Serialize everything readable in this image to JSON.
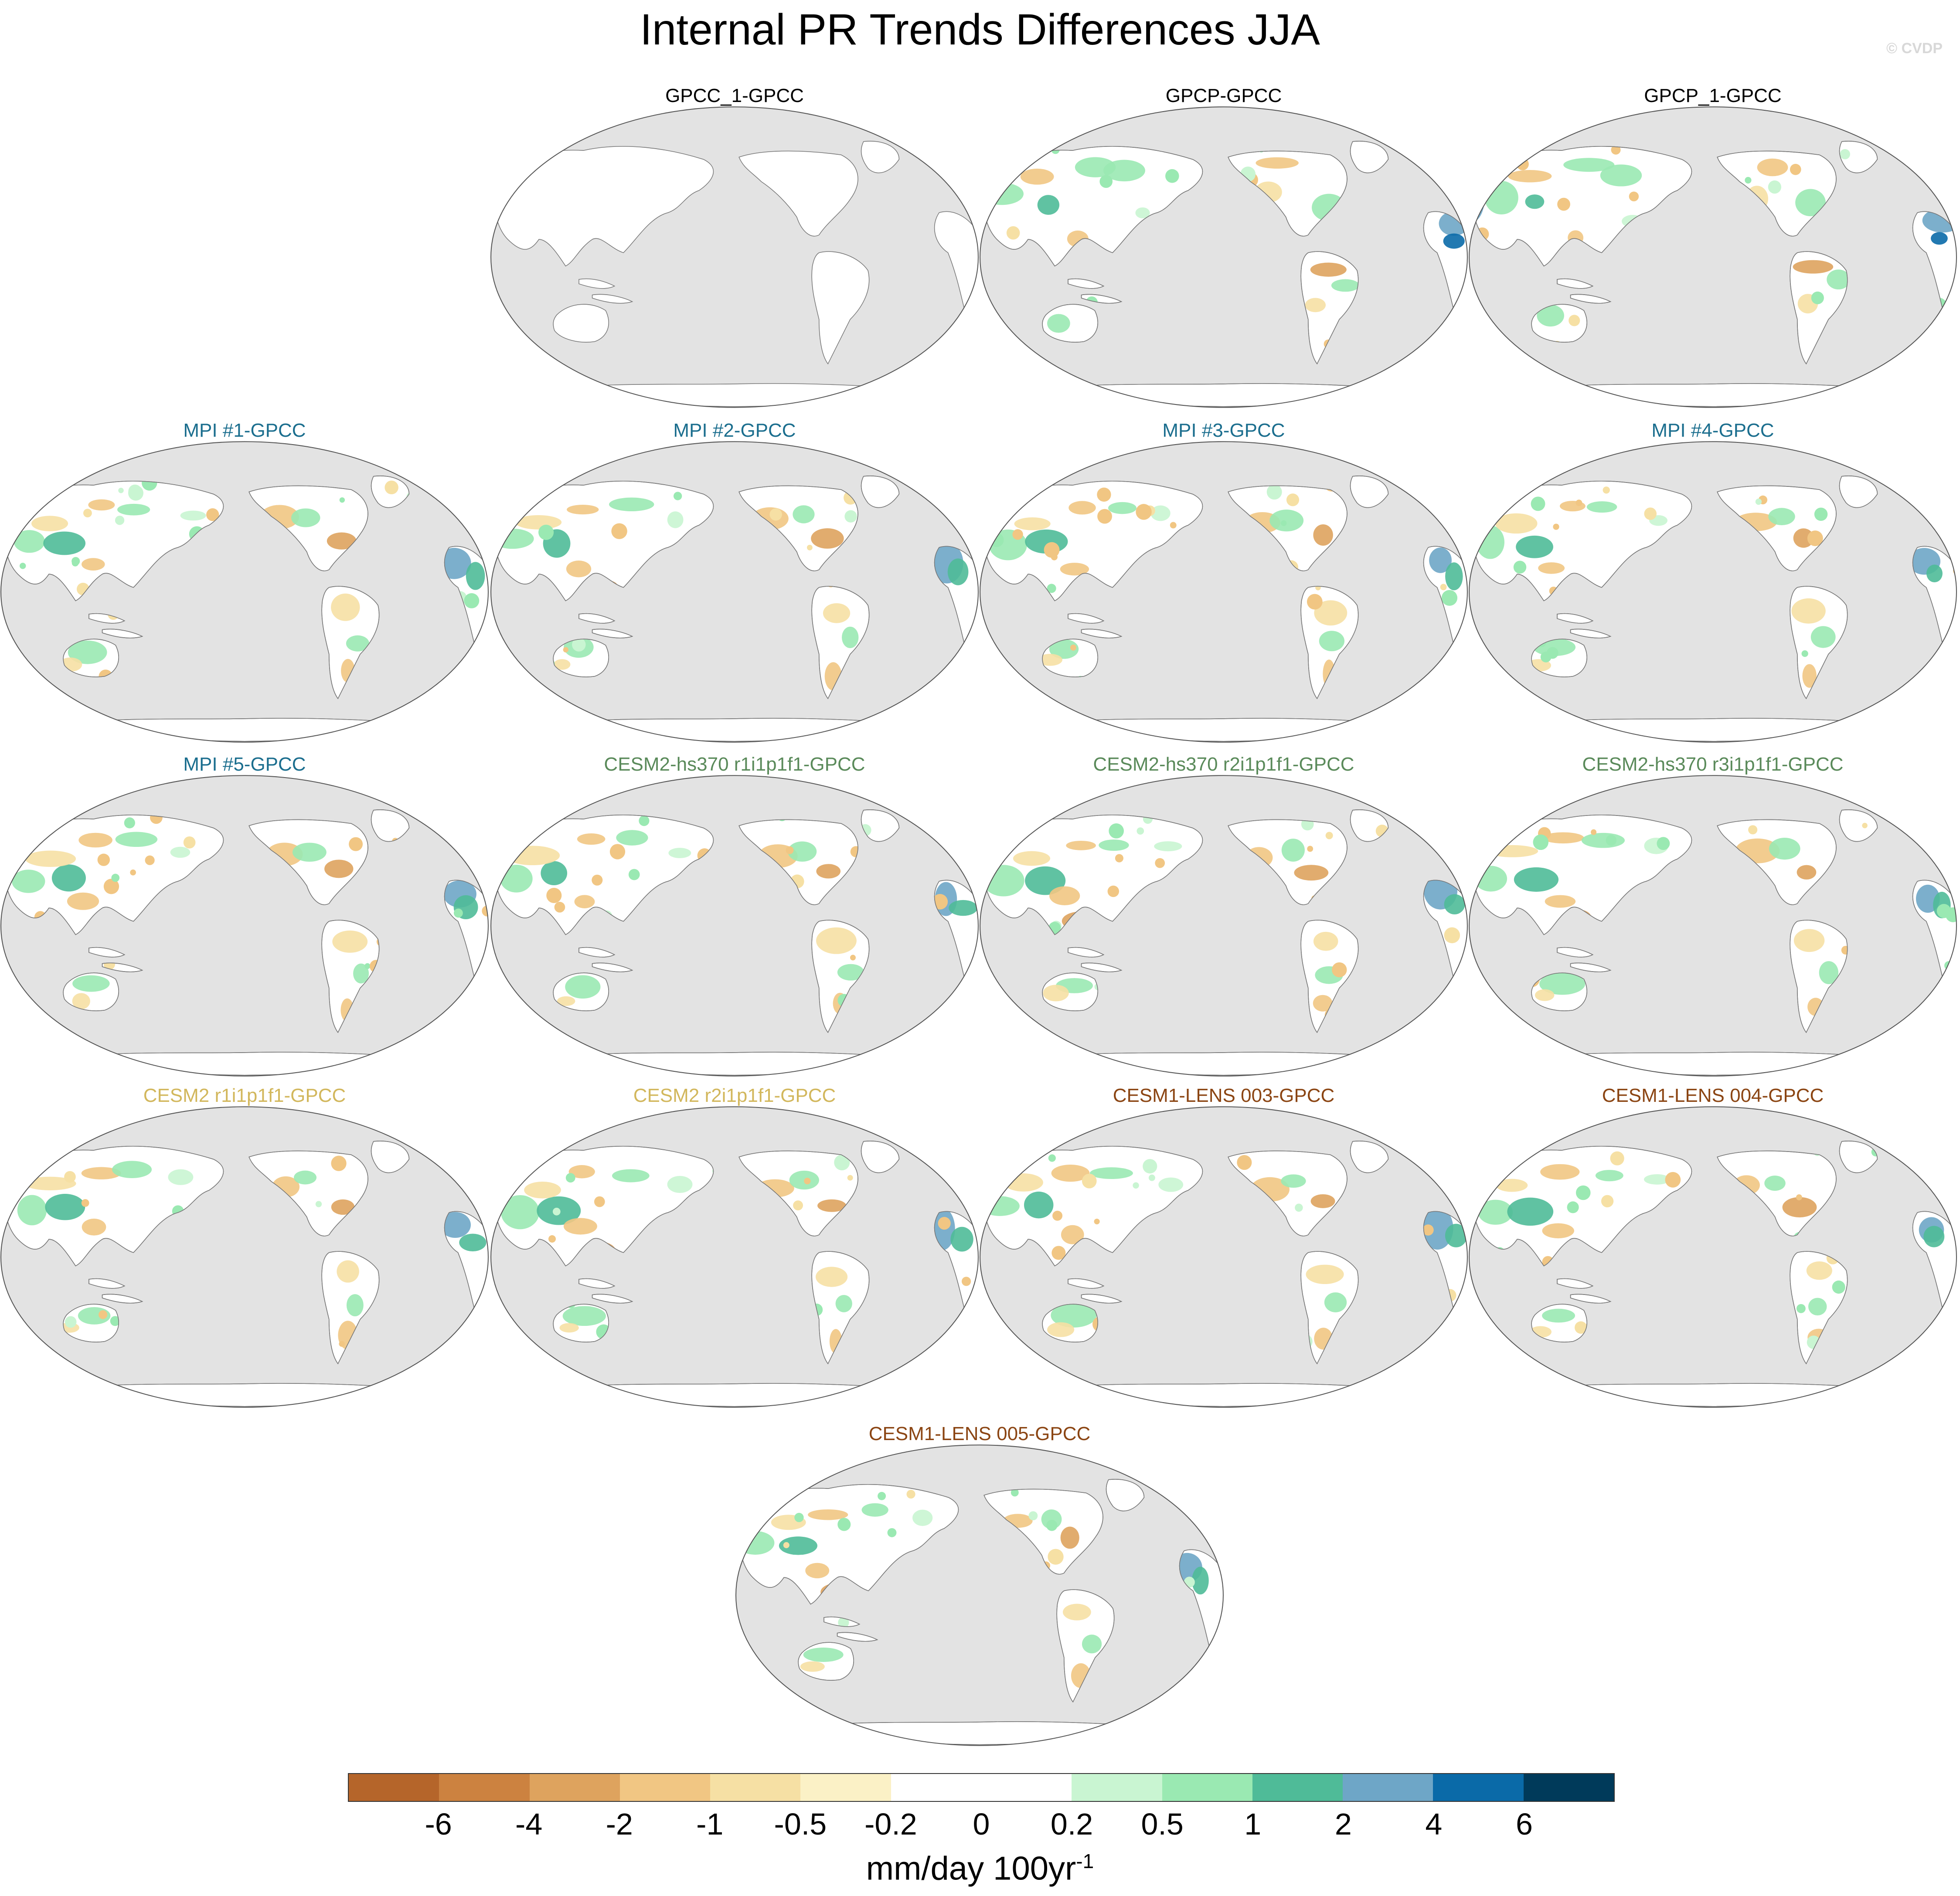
{
  "title": "Internal PR Trends Differences JJA",
  "copyright": "© CVDP",
  "colors": {
    "ocean": "#e3e3e3",
    "land": "#ffffff",
    "coastline": "#777777"
  },
  "panels": [
    {
      "label": "GPCC_1-GPCC",
      "color": "#000000",
      "pattern": "none"
    },
    {
      "label": "GPCP-GPCC",
      "color": "#000000",
      "pattern": "obs"
    },
    {
      "label": "GPCP_1-GPCC",
      "color": "#000000",
      "pattern": "obs"
    },
    {
      "label": "MPI #1-GPCC",
      "color": "#1b6e8e",
      "pattern": "model"
    },
    {
      "label": "MPI #2-GPCC",
      "color": "#1b6e8e",
      "pattern": "model"
    },
    {
      "label": "MPI #3-GPCC",
      "color": "#1b6e8e",
      "pattern": "model"
    },
    {
      "label": "MPI #4-GPCC",
      "color": "#1b6e8e",
      "pattern": "model"
    },
    {
      "label": "MPI #5-GPCC",
      "color": "#1b6e8e",
      "pattern": "model"
    },
    {
      "label": "CESM2-hs370 r1i1p1f1-GPCC",
      "color": "#5a8a5a",
      "pattern": "model"
    },
    {
      "label": "CESM2-hs370 r2i1p1f1-GPCC",
      "color": "#5a8a5a",
      "pattern": "model"
    },
    {
      "label": "CESM2-hs370 r3i1p1f1-GPCC",
      "color": "#5a8a5a",
      "pattern": "model"
    },
    {
      "label": "CESM2 r1i1p1f1-GPCC",
      "color": "#d2b75c",
      "pattern": "model"
    },
    {
      "label": "CESM2 r2i1p1f1-GPCC",
      "color": "#d2b75c",
      "pattern": "model"
    },
    {
      "label": "CESM1-LENS 003-GPCC",
      "color": "#8b4513",
      "pattern": "model"
    },
    {
      "label": "CESM1-LENS 004-GPCC",
      "color": "#8b4513",
      "pattern": "model"
    },
    {
      "label": "CESM1-LENS 005-GPCC",
      "color": "#8b4513",
      "pattern": "model"
    }
  ],
  "colorbar": {
    "colors": [
      "#b5652a",
      "#cc8240",
      "#dea35e",
      "#f1c683",
      "#f6e0a4",
      "#fbf1c6",
      "#ffffff",
      "#ffffff",
      "#c9f5d2",
      "#9ae9b2",
      "#4fbb98",
      "#6ea6c7",
      "#0a6aa8",
      "#003a5a"
    ],
    "tick_labels": [
      "-6",
      "-4",
      "-2",
      "-1",
      "-0.5",
      "-0.2",
      "0",
      "0.2",
      "0.5",
      "1",
      "2",
      "4",
      "6"
    ],
    "units": "mm/day 100yr",
    "units_exponent": "-1"
  }
}
